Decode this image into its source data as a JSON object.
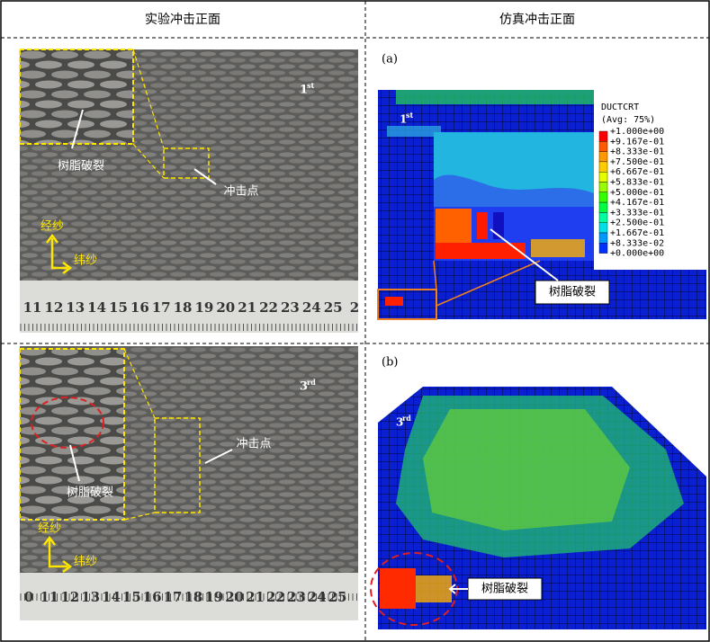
{
  "header": {
    "left": "实验冲击正面",
    "right": "仿真冲击正面"
  },
  "rows": [
    {
      "photo": {
        "specimen": {
          "number": "1",
          "suffix": "st"
        },
        "damage_label": "树脂破裂",
        "impact_label": "冲击点",
        "warp_label": "经纱",
        "weft_label": "纬纱",
        "ruler": [
          "11",
          "12",
          "13",
          "14",
          "15",
          "16",
          "17",
          "18",
          "19",
          "20",
          "21",
          "22",
          "23",
          "24",
          "25",
          "2"
        ]
      },
      "simulation": {
        "panel": "(a)",
        "specimen": {
          "number": "1",
          "suffix": "st"
        },
        "damage_label": "树脂破裂",
        "legend": {
          "title": "DUCTCRT",
          "subtitle": "(Avg: 75%)",
          "labels": [
            "+1.000e+00",
            "+9.167e-01",
            "+8.333e-01",
            "+7.500e-01",
            "+6.667e-01",
            "+5.833e-01",
            "+5.000e-01",
            "+4.167e-01",
            "+3.333e-01",
            "+2.500e-01",
            "+1.667e-01",
            "+8.333e-02",
            "+0.000e+00"
          ]
        }
      }
    },
    {
      "photo": {
        "specimen": {
          "number": "3",
          "suffix": "rd"
        },
        "damage_label": "树脂破裂",
        "impact_label": "冲击点",
        "warp_label": "经纱",
        "weft_label": "纬纱",
        "ruler": [
          "0",
          "11",
          "12",
          "13",
          "14",
          "15",
          "16",
          "17",
          "18",
          "19",
          "20",
          "21",
          "22",
          "23",
          "24",
          "25"
        ]
      },
      "simulation": {
        "panel": "(b)",
        "specimen": {
          "number": "3",
          "suffix": "rd"
        },
        "damage_label": "树脂破裂"
      }
    }
  ]
}
